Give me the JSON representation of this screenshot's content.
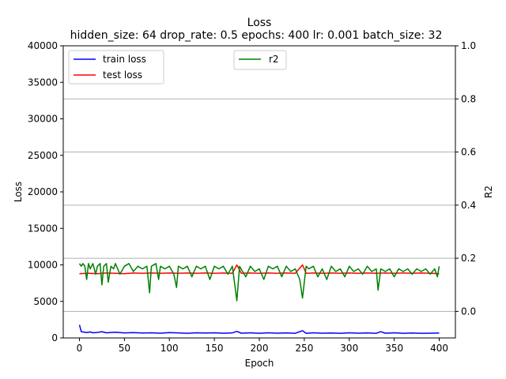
{
  "chart_data": {
    "type": "line",
    "title": "Loss",
    "subtitle": "hidden_size: 64 drop_rate: 0.5 epochs: 400 lr: 0.001 batch_size: 32",
    "xlabel": "Epoch",
    "ylabel": "Loss",
    "y2label": "R2",
    "xlim": [
      -18,
      418
    ],
    "ylim": [
      0,
      40000
    ],
    "y2lim": [
      -0.1,
      1.0
    ],
    "xticks": [
      0,
      50,
      100,
      150,
      200,
      250,
      300,
      350,
      400
    ],
    "yticks": [
      0,
      5000,
      10000,
      15000,
      20000,
      25000,
      30000,
      35000,
      40000
    ],
    "y2ticks": [
      0.0,
      0.2,
      0.4,
      0.6,
      0.8,
      1.0
    ],
    "grid": "horizontal gridlines at right-axis ticks",
    "legend_left": {
      "placement": "upper-left",
      "entries": [
        "train loss",
        "test loss"
      ]
    },
    "legend_right": {
      "placement": "upper-center",
      "entries": [
        "r2"
      ]
    },
    "series": [
      {
        "name": "train loss",
        "axis": "left",
        "color": "#0000ff",
        "points": [
          [
            0,
            1800
          ],
          [
            2,
            850
          ],
          [
            5,
            800
          ],
          [
            8,
            750
          ],
          [
            12,
            820
          ],
          [
            15,
            700
          ],
          [
            20,
            760
          ],
          [
            25,
            850
          ],
          [
            30,
            700
          ],
          [
            40,
            780
          ],
          [
            50,
            690
          ],
          [
            60,
            720
          ],
          [
            70,
            680
          ],
          [
            80,
            700
          ],
          [
            90,
            650
          ],
          [
            100,
            720
          ],
          [
            110,
            690
          ],
          [
            120,
            640
          ],
          [
            130,
            700
          ],
          [
            140,
            680
          ],
          [
            150,
            700
          ],
          [
            160,
            650
          ],
          [
            170,
            690
          ],
          [
            175,
            900
          ],
          [
            180,
            650
          ],
          [
            190,
            700
          ],
          [
            200,
            640
          ],
          [
            210,
            700
          ],
          [
            220,
            650
          ],
          [
            230,
            690
          ],
          [
            240,
            640
          ],
          [
            248,
            1000
          ],
          [
            252,
            640
          ],
          [
            260,
            700
          ],
          [
            270,
            650
          ],
          [
            280,
            680
          ],
          [
            290,
            640
          ],
          [
            300,
            700
          ],
          [
            310,
            650
          ],
          [
            320,
            690
          ],
          [
            330,
            640
          ],
          [
            335,
            850
          ],
          [
            340,
            650
          ],
          [
            350,
            700
          ],
          [
            360,
            640
          ],
          [
            370,
            680
          ],
          [
            380,
            640
          ],
          [
            390,
            650
          ],
          [
            400,
            680
          ]
        ]
      },
      {
        "name": "test loss",
        "axis": "left",
        "color": "#ff0000",
        "points": [
          [
            0,
            8800
          ],
          [
            10,
            8850
          ],
          [
            20,
            8800
          ],
          [
            30,
            8900
          ],
          [
            40,
            8850
          ],
          [
            50,
            8800
          ],
          [
            60,
            8900
          ],
          [
            70,
            8850
          ],
          [
            80,
            8900
          ],
          [
            90,
            8850
          ],
          [
            100,
            8900
          ],
          [
            110,
            8850
          ],
          [
            120,
            8900
          ],
          [
            130,
            8850
          ],
          [
            140,
            8900
          ],
          [
            150,
            8850
          ],
          [
            160,
            8900
          ],
          [
            170,
            8850
          ],
          [
            175,
            10000
          ],
          [
            180,
            8850
          ],
          [
            190,
            8900
          ],
          [
            200,
            8850
          ],
          [
            210,
            8900
          ],
          [
            220,
            8850
          ],
          [
            230,
            8900
          ],
          [
            240,
            8850
          ],
          [
            248,
            10000
          ],
          [
            252,
            8850
          ],
          [
            260,
            8900
          ],
          [
            270,
            8850
          ],
          [
            280,
            8900
          ],
          [
            290,
            8850
          ],
          [
            300,
            8900
          ],
          [
            310,
            8850
          ],
          [
            320,
            8900
          ],
          [
            330,
            8850
          ],
          [
            340,
            8900
          ],
          [
            350,
            8850
          ],
          [
            360,
            8900
          ],
          [
            370,
            8850
          ],
          [
            380,
            8900
          ],
          [
            390,
            8850
          ],
          [
            400,
            8800
          ]
        ]
      },
      {
        "name": "r2",
        "axis": "right",
        "color": "#008000",
        "points": [
          [
            0,
            0.18
          ],
          [
            2,
            0.17
          ],
          [
            4,
            0.18
          ],
          [
            6,
            0.17
          ],
          [
            8,
            0.12
          ],
          [
            10,
            0.18
          ],
          [
            12,
            0.16
          ],
          [
            15,
            0.18
          ],
          [
            18,
            0.14
          ],
          [
            20,
            0.17
          ],
          [
            23,
            0.18
          ],
          [
            25,
            0.1
          ],
          [
            27,
            0.17
          ],
          [
            30,
            0.18
          ],
          [
            32,
            0.11
          ],
          [
            35,
            0.17
          ],
          [
            38,
            0.16
          ],
          [
            40,
            0.18
          ],
          [
            45,
            0.14
          ],
          [
            50,
            0.17
          ],
          [
            55,
            0.18
          ],
          [
            60,
            0.15
          ],
          [
            65,
            0.17
          ],
          [
            70,
            0.16
          ],
          [
            75,
            0.17
          ],
          [
            78,
            0.07
          ],
          [
            80,
            0.17
          ],
          [
            85,
            0.18
          ],
          [
            88,
            0.12
          ],
          [
            90,
            0.17
          ],
          [
            95,
            0.16
          ],
          [
            100,
            0.17
          ],
          [
            105,
            0.14
          ],
          [
            108,
            0.09
          ],
          [
            110,
            0.17
          ],
          [
            115,
            0.16
          ],
          [
            120,
            0.17
          ],
          [
            125,
            0.13
          ],
          [
            130,
            0.17
          ],
          [
            135,
            0.16
          ],
          [
            140,
            0.17
          ],
          [
            145,
            0.12
          ],
          [
            150,
            0.17
          ],
          [
            155,
            0.16
          ],
          [
            160,
            0.17
          ],
          [
            165,
            0.14
          ],
          [
            170,
            0.17
          ],
          [
            175,
            0.04
          ],
          [
            178,
            0.17
          ],
          [
            185,
            0.13
          ],
          [
            190,
            0.17
          ],
          [
            195,
            0.15
          ],
          [
            200,
            0.16
          ],
          [
            205,
            0.12
          ],
          [
            210,
            0.17
          ],
          [
            215,
            0.16
          ],
          [
            220,
            0.17
          ],
          [
            225,
            0.13
          ],
          [
            230,
            0.17
          ],
          [
            235,
            0.15
          ],
          [
            240,
            0.16
          ],
          [
            245,
            0.12
          ],
          [
            248,
            0.05
          ],
          [
            252,
            0.17
          ],
          [
            255,
            0.16
          ],
          [
            260,
            0.17
          ],
          [
            265,
            0.13
          ],
          [
            270,
            0.16
          ],
          [
            275,
            0.12
          ],
          [
            280,
            0.17
          ],
          [
            285,
            0.15
          ],
          [
            290,
            0.16
          ],
          [
            295,
            0.13
          ],
          [
            300,
            0.17
          ],
          [
            305,
            0.15
          ],
          [
            310,
            0.16
          ],
          [
            315,
            0.14
          ],
          [
            320,
            0.17
          ],
          [
            325,
            0.15
          ],
          [
            330,
            0.16
          ],
          [
            332,
            0.08
          ],
          [
            335,
            0.16
          ],
          [
            340,
            0.15
          ],
          [
            345,
            0.16
          ],
          [
            350,
            0.13
          ],
          [
            355,
            0.16
          ],
          [
            360,
            0.15
          ],
          [
            365,
            0.16
          ],
          [
            370,
            0.14
          ],
          [
            375,
            0.16
          ],
          [
            380,
            0.15
          ],
          [
            385,
            0.16
          ],
          [
            390,
            0.14
          ],
          [
            395,
            0.16
          ],
          [
            398,
            0.13
          ],
          [
            400,
            0.17
          ]
        ]
      }
    ]
  }
}
